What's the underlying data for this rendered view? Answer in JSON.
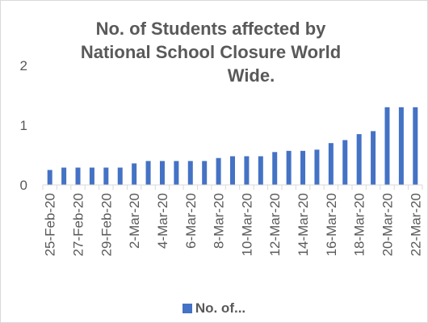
{
  "chart_data": {
    "type": "bar",
    "title_lines": [
      "No. of Students affected by",
      "National School Closure World",
      "Wide."
    ],
    "legend_label": "No. of...",
    "categories": [
      "25-Feb-20",
      "26-Feb-20",
      "27-Feb-20",
      "28-Feb-20",
      "29-Feb-20",
      "1-Mar-20",
      "2-Mar-20",
      "3-Mar-20",
      "4-Mar-20",
      "5-Mar-20",
      "6-Mar-20",
      "7-Mar-20",
      "8-Mar-20",
      "9-Mar-20",
      "10-Mar-20",
      "11-Mar-20",
      "12-Mar-20",
      "13-Mar-20",
      "14-Mar-20",
      "15-Mar-20",
      "16-Mar-20",
      "17-Mar-20",
      "18-Mar-20",
      "19-Mar-20",
      "20-Mar-20",
      "21-Mar-20",
      "22-Mar-20"
    ],
    "tick_labels_shown": [
      "25-Feb-20",
      "27-Feb-20",
      "29-Feb-20",
      "2-Mar-20",
      "4-Mar-20",
      "6-Mar-20",
      "8-Mar-20",
      "10-Mar-20",
      "12-Mar-20",
      "14-Mar-20",
      "16-Mar-20",
      "18-Mar-20",
      "20-Mar-20",
      "22-Mar-20"
    ],
    "series": [
      {
        "name": "No. of...",
        "values": [
          0.25,
          0.29,
          0.29,
          0.29,
          0.29,
          0.29,
          0.36,
          0.4,
          0.4,
          0.4,
          0.4,
          0.4,
          0.45,
          0.48,
          0.48,
          0.48,
          0.55,
          0.57,
          0.57,
          0.59,
          0.7,
          0.75,
          0.85,
          0.9,
          1.3,
          1.3,
          1.3
        ]
      }
    ],
    "yticks": [
      0,
      1,
      2
    ],
    "ylim": [
      0,
      2
    ],
    "xlabel": "",
    "ylabel": "",
    "grid": false,
    "legend_position": "bottom",
    "colors": {
      "bar": "#4472c4",
      "axis": "#d9d9d9",
      "text": "#595959"
    }
  }
}
